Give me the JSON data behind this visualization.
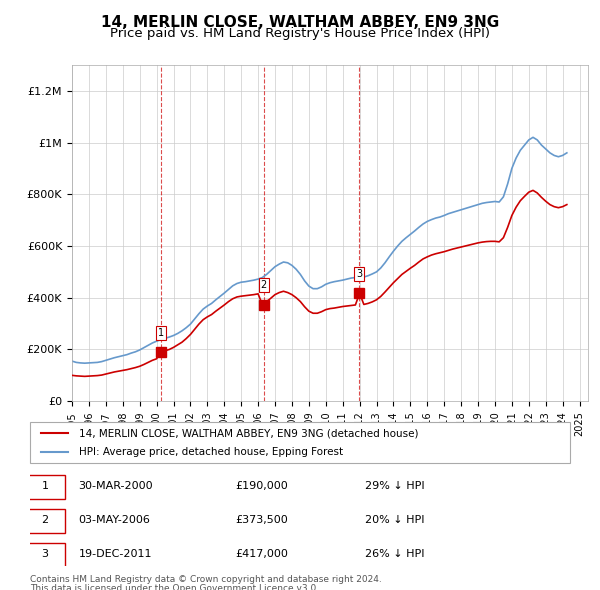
{
  "title": "14, MERLIN CLOSE, WALTHAM ABBEY, EN9 3NG",
  "subtitle": "Price paid vs. HM Land Registry's House Price Index (HPI)",
  "title_fontsize": 11,
  "subtitle_fontsize": 9.5,
  "ylim": [
    0,
    1300000
  ],
  "yticks": [
    0,
    200000,
    400000,
    600000,
    800000,
    1000000,
    1200000
  ],
  "ytick_labels": [
    "£0",
    "£200K",
    "£400K",
    "£600K",
    "£800K",
    "£1M",
    "£1.2M"
  ],
  "xlim_start": 1995.0,
  "xlim_end": 2025.5,
  "transactions": [
    {
      "num": 1,
      "date": "30-MAR-2000",
      "price": 190000,
      "pct": "29%",
      "x": 2000.25
    },
    {
      "num": 2,
      "date": "03-MAY-2006",
      "price": 373500,
      "pct": "20%",
      "x": 2006.33
    },
    {
      "num": 3,
      "date": "19-DEC-2011",
      "price": 417000,
      "pct": "26%",
      "x": 2011.96
    }
  ],
  "legend_label_red": "14, MERLIN CLOSE, WALTHAM ABBEY, EN9 3NG (detached house)",
  "legend_label_blue": "HPI: Average price, detached house, Epping Forest",
  "footer1": "Contains HM Land Registry data © Crown copyright and database right 2024.",
  "footer2": "This data is licensed under the Open Government Licence v3.0.",
  "red_color": "#cc0000",
  "blue_color": "#6699cc",
  "marker_color": "#cc0000",
  "vline_color": "#cc0000",
  "hpi_data_x": [
    1995.0,
    1995.25,
    1995.5,
    1995.75,
    1996.0,
    1996.25,
    1996.5,
    1996.75,
    1997.0,
    1997.25,
    1997.5,
    1997.75,
    1998.0,
    1998.25,
    1998.5,
    1998.75,
    1999.0,
    1999.25,
    1999.5,
    1999.75,
    2000.0,
    2000.25,
    2000.5,
    2000.75,
    2001.0,
    2001.25,
    2001.5,
    2001.75,
    2002.0,
    2002.25,
    2002.5,
    2002.75,
    2003.0,
    2003.25,
    2003.5,
    2003.75,
    2004.0,
    2004.25,
    2004.5,
    2004.75,
    2005.0,
    2005.25,
    2005.5,
    2005.75,
    2006.0,
    2006.25,
    2006.5,
    2006.75,
    2007.0,
    2007.25,
    2007.5,
    2007.75,
    2008.0,
    2008.25,
    2008.5,
    2008.75,
    2009.0,
    2009.25,
    2009.5,
    2009.75,
    2010.0,
    2010.25,
    2010.5,
    2010.75,
    2011.0,
    2011.25,
    2011.5,
    2011.75,
    2012.0,
    2012.25,
    2012.5,
    2012.75,
    2013.0,
    2013.25,
    2013.5,
    2013.75,
    2014.0,
    2014.25,
    2014.5,
    2014.75,
    2015.0,
    2015.25,
    2015.5,
    2015.75,
    2016.0,
    2016.25,
    2016.5,
    2016.75,
    2017.0,
    2017.25,
    2017.5,
    2017.75,
    2018.0,
    2018.25,
    2018.5,
    2018.75,
    2019.0,
    2019.25,
    2019.5,
    2019.75,
    2020.0,
    2020.25,
    2020.5,
    2020.75,
    2021.0,
    2021.25,
    2021.5,
    2021.75,
    2022.0,
    2022.25,
    2022.5,
    2022.75,
    2023.0,
    2023.25,
    2023.5,
    2023.75,
    2024.0,
    2024.25
  ],
  "hpi_data_y": [
    155000,
    150000,
    148000,
    147000,
    148000,
    149000,
    150000,
    153000,
    158000,
    163000,
    168000,
    172000,
    176000,
    180000,
    186000,
    191000,
    198000,
    207000,
    216000,
    225000,
    232000,
    238000,
    243000,
    248000,
    254000,
    262000,
    272000,
    284000,
    298000,
    318000,
    338000,
    356000,
    368000,
    378000,
    392000,
    405000,
    418000,
    432000,
    446000,
    455000,
    460000,
    462000,
    465000,
    468000,
    472000,
    478000,
    490000,
    505000,
    520000,
    530000,
    538000,
    535000,
    525000,
    510000,
    490000,
    465000,
    445000,
    435000,
    435000,
    442000,
    452000,
    458000,
    462000,
    465000,
    468000,
    472000,
    476000,
    478000,
    478000,
    480000,
    485000,
    492000,
    500000,
    515000,
    535000,
    558000,
    580000,
    600000,
    618000,
    632000,
    645000,
    658000,
    672000,
    685000,
    695000,
    702000,
    708000,
    712000,
    718000,
    725000,
    730000,
    735000,
    740000,
    745000,
    750000,
    755000,
    760000,
    765000,
    768000,
    770000,
    772000,
    770000,
    790000,
    840000,
    900000,
    940000,
    970000,
    990000,
    1010000,
    1020000,
    1010000,
    990000,
    975000,
    960000,
    950000,
    945000,
    950000,
    960000
  ],
  "price_data_x": [
    1995.0,
    1995.25,
    1995.5,
    1995.75,
    1996.0,
    1996.25,
    1996.5,
    1996.75,
    1997.0,
    1997.25,
    1997.5,
    1997.75,
    1998.0,
    1998.25,
    1998.5,
    1998.75,
    1999.0,
    1999.25,
    1999.5,
    1999.75,
    2000.0,
    2000.25,
    2000.5,
    2000.75,
    2001.0,
    2001.25,
    2001.5,
    2001.75,
    2002.0,
    2002.25,
    2002.5,
    2002.75,
    2003.0,
    2003.25,
    2003.5,
    2003.75,
    2004.0,
    2004.25,
    2004.5,
    2004.75,
    2005.0,
    2005.25,
    2005.5,
    2005.75,
    2006.0,
    2006.25,
    2006.5,
    2006.75,
    2007.0,
    2007.25,
    2007.5,
    2007.75,
    2008.0,
    2008.25,
    2008.5,
    2008.75,
    2009.0,
    2009.25,
    2009.5,
    2009.75,
    2010.0,
    2010.25,
    2010.5,
    2010.75,
    2011.0,
    2011.25,
    2011.5,
    2011.75,
    2012.0,
    2012.25,
    2012.5,
    2012.75,
    2013.0,
    2013.25,
    2013.5,
    2013.75,
    2014.0,
    2014.25,
    2014.5,
    2014.75,
    2015.0,
    2015.25,
    2015.5,
    2015.75,
    2016.0,
    2016.25,
    2016.5,
    2016.75,
    2017.0,
    2017.25,
    2017.5,
    2017.75,
    2018.0,
    2018.25,
    2018.5,
    2018.75,
    2019.0,
    2019.25,
    2019.5,
    2019.75,
    2020.0,
    2020.25,
    2020.5,
    2020.75,
    2021.0,
    2021.25,
    2021.5,
    2021.75,
    2022.0,
    2022.25,
    2022.5,
    2022.75,
    2023.0,
    2023.25,
    2023.5,
    2023.75,
    2024.0,
    2024.25
  ],
  "price_data_y": [
    100000,
    98000,
    97000,
    96000,
    97000,
    98000,
    99000,
    101000,
    105000,
    109000,
    113000,
    116000,
    119000,
    122000,
    126000,
    130000,
    135000,
    142000,
    150000,
    158000,
    164000,
    190000,
    195000,
    200000,
    208000,
    218000,
    228000,
    242000,
    258000,
    278000,
    298000,
    315000,
    326000,
    335000,
    348000,
    360000,
    372000,
    385000,
    396000,
    403000,
    406000,
    408000,
    410000,
    412000,
    415000,
    373500,
    385000,
    398000,
    412000,
    420000,
    425000,
    420000,
    412000,
    400000,
    385000,
    365000,
    348000,
    340000,
    340000,
    346000,
    354000,
    358000,
    360000,
    363000,
    366000,
    368000,
    370000,
    372000,
    417000,
    374000,
    378000,
    384000,
    392000,
    405000,
    422000,
    440000,
    458000,
    474000,
    490000,
    502000,
    514000,
    525000,
    538000,
    550000,
    558000,
    565000,
    570000,
    574000,
    578000,
    583000,
    588000,
    592000,
    596000,
    600000,
    604000,
    608000,
    612000,
    615000,
    617000,
    618000,
    618000,
    616000,
    632000,
    672000,
    718000,
    750000,
    775000,
    792000,
    808000,
    815000,
    805000,
    788000,
    773000,
    760000,
    752000,
    748000,
    752000,
    760000
  ]
}
